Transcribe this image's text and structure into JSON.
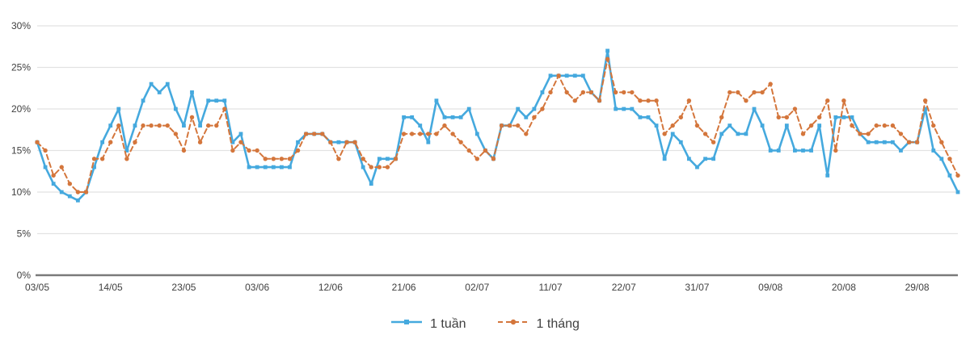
{
  "chart_data": {
    "type": "line",
    "title": "",
    "xlabel": "",
    "ylabel": "",
    "ylim": [
      0,
      30
    ],
    "grid": true,
    "legend_position": "bottom",
    "y_ticks": [
      {
        "value": 0,
        "label": "0%"
      },
      {
        "value": 5,
        "label": "5%"
      },
      {
        "value": 10,
        "label": "10%"
      },
      {
        "value": 15,
        "label": "15%"
      },
      {
        "value": 20,
        "label": "20%"
      },
      {
        "value": 25,
        "label": "25%"
      },
      {
        "value": 30,
        "label": "30%"
      }
    ],
    "x_ticks": [
      {
        "index": 0,
        "label": "03/05"
      },
      {
        "index": 9,
        "label": "14/05"
      },
      {
        "index": 18,
        "label": "23/05"
      },
      {
        "index": 27,
        "label": "03/06"
      },
      {
        "index": 36,
        "label": "12/06"
      },
      {
        "index": 45,
        "label": "21/06"
      },
      {
        "index": 54,
        "label": "02/07"
      },
      {
        "index": 63,
        "label": "11/07"
      },
      {
        "index": 72,
        "label": "22/07"
      },
      {
        "index": 81,
        "label": "31/07"
      },
      {
        "index": 90,
        "label": "09/08"
      },
      {
        "index": 99,
        "label": "20/08"
      },
      {
        "index": 108,
        "label": "29/08"
      }
    ],
    "series": [
      {
        "name": "1 tuần",
        "color": "#45a9de",
        "line_style": "solid",
        "marker": "square",
        "values": [
          16,
          13,
          11,
          10,
          9.5,
          9,
          10,
          13,
          16,
          18,
          20,
          15,
          18,
          21,
          23,
          22,
          23,
          20,
          18,
          22,
          18,
          21,
          21,
          21,
          16,
          17,
          13,
          13,
          13,
          13,
          13,
          13,
          16,
          17,
          17,
          17,
          16,
          16,
          16,
          16,
          13,
          11,
          14,
          14,
          14,
          19,
          19,
          18,
          16,
          21,
          19,
          19,
          19,
          20,
          17,
          15,
          14,
          18,
          18,
          20,
          19,
          20,
          22,
          24,
          24,
          24,
          24,
          24,
          22,
          21,
          27,
          20,
          20,
          20,
          19,
          19,
          18,
          14,
          17,
          16,
          14,
          13,
          14,
          14,
          17,
          18,
          17,
          17,
          20,
          18,
          15,
          15,
          18,
          15,
          15,
          15,
          18,
          12,
          19,
          19,
          19,
          17,
          16,
          16,
          16,
          16,
          15,
          16,
          16,
          20,
          15,
          14,
          12,
          10
        ]
      },
      {
        "name": "1 tháng",
        "color": "#d4763c",
        "line_style": "dashed",
        "marker": "circle",
        "values": [
          16,
          15,
          12,
          13,
          11,
          10,
          10,
          14,
          14,
          16,
          18,
          14,
          16,
          18,
          18,
          18,
          18,
          17,
          15,
          19,
          16,
          18,
          18,
          20,
          15,
          16,
          15,
          15,
          14,
          14,
          14,
          14,
          15,
          17,
          17,
          17,
          16,
          14,
          16,
          16,
          14,
          13,
          13,
          13,
          14,
          17,
          17,
          17,
          17,
          17,
          18,
          17,
          16,
          15,
          14,
          15,
          14,
          18,
          18,
          18,
          17,
          19,
          20,
          22,
          24,
          22,
          21,
          22,
          22,
          21,
          26,
          22,
          22,
          22,
          21,
          21,
          21,
          17,
          18,
          19,
          21,
          18,
          17,
          16,
          19,
          22,
          22,
          21,
          22,
          22,
          23,
          19,
          19,
          20,
          17,
          18,
          19,
          21,
          15,
          21,
          18,
          17,
          17,
          18,
          18,
          18,
          17,
          16,
          16,
          21,
          18,
          16,
          14,
          12
        ]
      }
    ]
  },
  "axis": {
    "line_color": "#7a7a7a",
    "grid_color": "#e2e2e2",
    "tick_text_color": "#404040"
  }
}
